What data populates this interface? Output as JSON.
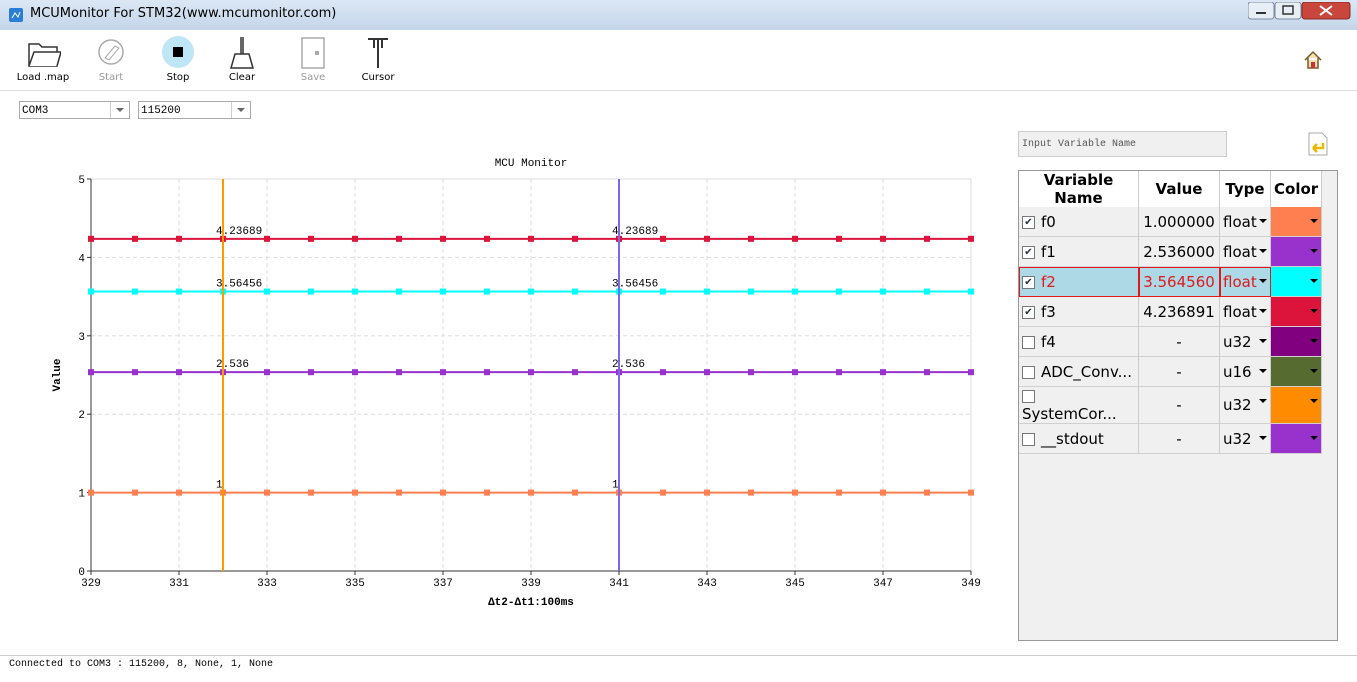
{
  "window": {
    "title": "MCUMonitor For STM32(www.mcumonitor.com)"
  },
  "toolbar": {
    "buttons": [
      {
        "label": "Load .map",
        "enabled": true
      },
      {
        "label": "Start",
        "enabled": false
      },
      {
        "label": "Stop",
        "enabled": true
      },
      {
        "label": "Clear",
        "enabled": true
      },
      {
        "label": "Save",
        "enabled": false
      },
      {
        "label": "Cursor",
        "enabled": true
      }
    ]
  },
  "connection": {
    "port": "COM3",
    "baud": "115200"
  },
  "search": {
    "placeholder": "Input Variable Name"
  },
  "chart_data": {
    "type": "line",
    "title": "MCU Monitor",
    "x_label": "Δt2-Δt1:100ms",
    "y_label": "Value",
    "x": [
      329,
      330,
      331,
      332,
      333,
      334,
      335,
      336,
      337,
      338,
      339,
      340,
      341,
      342,
      343,
      344,
      345,
      346,
      347,
      348,
      349
    ],
    "series": [
      {
        "color": "#ff7f50",
        "cursor_label": "1",
        "values": [
          1,
          1,
          1,
          1,
          1,
          1,
          1,
          1,
          1,
          1,
          1,
          1,
          1,
          1,
          1,
          1,
          1,
          1,
          1,
          1,
          1
        ]
      },
      {
        "color": "#9932cc",
        "cursor_label": "2.536",
        "values": [
          2.536,
          2.536,
          2.536,
          2.536,
          2.536,
          2.536,
          2.536,
          2.536,
          2.536,
          2.536,
          2.536,
          2.536,
          2.536,
          2.536,
          2.536,
          2.536,
          2.536,
          2.536,
          2.536,
          2.536,
          2.536
        ]
      },
      {
        "color": "#00ffff",
        "cursor_label": "3.56456",
        "values": [
          3.56456,
          3.56456,
          3.56456,
          3.56456,
          3.56456,
          3.56456,
          3.56456,
          3.56456,
          3.56456,
          3.56456,
          3.56456,
          3.56456,
          3.56456,
          3.56456,
          3.56456,
          3.56456,
          3.56456,
          3.56456,
          3.56456,
          3.56456,
          3.56456
        ]
      },
      {
        "color": "#dc143c",
        "cursor_label": "4.23689",
        "values": [
          4.23689,
          4.23689,
          4.23689,
          4.23689,
          4.23689,
          4.23689,
          4.23689,
          4.23689,
          4.23689,
          4.23689,
          4.23689,
          4.23689,
          4.23689,
          4.23689,
          4.23689,
          4.23689,
          4.23689,
          4.23689,
          4.23689,
          4.23689,
          4.23689
        ]
      }
    ],
    "cursors": [
      {
        "x": 332,
        "color": "#ff9900"
      },
      {
        "x": 341,
        "color": "#7b68ee"
      }
    ],
    "xlim": [
      329,
      349
    ],
    "xticks": [
      329,
      331,
      333,
      335,
      337,
      339,
      341,
      343,
      345,
      347,
      349
    ],
    "ylim": [
      0,
      5
    ],
    "yticks": [
      0,
      1,
      2,
      3,
      4,
      5
    ],
    "grid": true
  },
  "table": {
    "headers": [
      "Variable Name",
      "Value",
      "Type",
      "Color"
    ],
    "rows": [
      {
        "checked": true,
        "name": "f0",
        "value": "1.000000",
        "type": "float",
        "color": "#ff7f50",
        "selected": false
      },
      {
        "checked": true,
        "name": "f1",
        "value": "2.536000",
        "type": "float",
        "color": "#9932cc",
        "selected": false
      },
      {
        "checked": true,
        "name": "f2",
        "value": "3.564560",
        "type": "float",
        "color": "#00ffff",
        "selected": true
      },
      {
        "checked": true,
        "name": "f3",
        "value": "4.236891",
        "type": "float",
        "color": "#dc143c",
        "selected": false
      },
      {
        "checked": false,
        "name": "f4",
        "value": "-",
        "type": "u32",
        "color": "#800080",
        "selected": false
      },
      {
        "checked": false,
        "name": "ADC_Conv...",
        "value": "-",
        "type": "u16",
        "color": "#556b2f",
        "selected": false
      },
      {
        "checked": false,
        "name": "SystemCor...",
        "value": "-",
        "type": "u32",
        "color": "#ff8c00",
        "selected": false
      },
      {
        "checked": false,
        "name": "__stdout",
        "value": "-",
        "type": "u32",
        "color": "#9932cc",
        "selected": false
      }
    ]
  },
  "status": {
    "text": "Connected to COM3 : 115200, 8, None, 1, None"
  }
}
